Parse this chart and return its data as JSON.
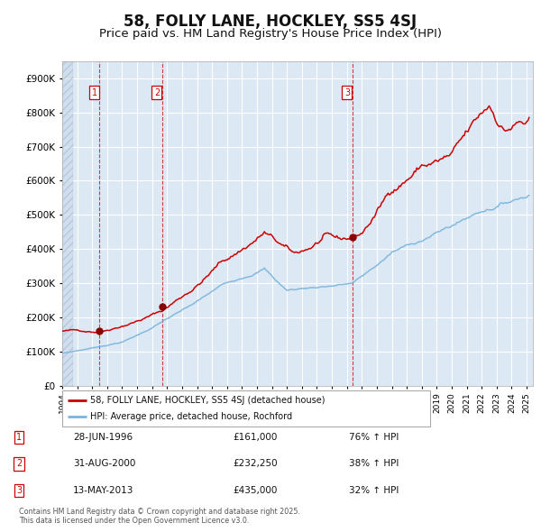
{
  "title": "58, FOLLY LANE, HOCKLEY, SS5 4SJ",
  "subtitle": "Price paid vs. HM Land Registry's House Price Index (HPI)",
  "legend_entry1": "58, FOLLY LANE, HOCKLEY, SS5 4SJ (detached house)",
  "legend_entry2": "HPI: Average price, detached house, Rochford",
  "transactions": [
    {
      "label": "1",
      "date": "1996-06-28",
      "price": 161000,
      "hpi_pct": "76% ↑ HPI",
      "date_str": "28-JUN-1996"
    },
    {
      "label": "2",
      "date": "2000-08-31",
      "price": 232250,
      "hpi_pct": "38% ↑ HPI",
      "date_str": "31-AUG-2000"
    },
    {
      "label": "3",
      "date": "2013-05-13",
      "price": 435000,
      "hpi_pct": "32% ↑ HPI",
      "date_str": "13-MAY-2013"
    }
  ],
  "fig_bg": "#ffffff",
  "plot_bg_color": "#dce9f5",
  "red_line_color": "#cc0000",
  "blue_line_color": "#7ab4dc",
  "grid_color": "#ffffff",
  "ylim": [
    0,
    950000
  ],
  "yticks": [
    0,
    100000,
    200000,
    300000,
    400000,
    500000,
    600000,
    700000,
    800000,
    900000
  ],
  "ytick_labels": [
    "£0",
    "£100K",
    "£200K",
    "£300K",
    "£400K",
    "£500K",
    "£600K",
    "£700K",
    "£800K",
    "£900K"
  ],
  "footnote": "Contains HM Land Registry data © Crown copyright and database right 2025.\nThis data is licensed under the Open Government Licence v3.0.",
  "title_fontsize": 12,
  "subtitle_fontsize": 9.5
}
